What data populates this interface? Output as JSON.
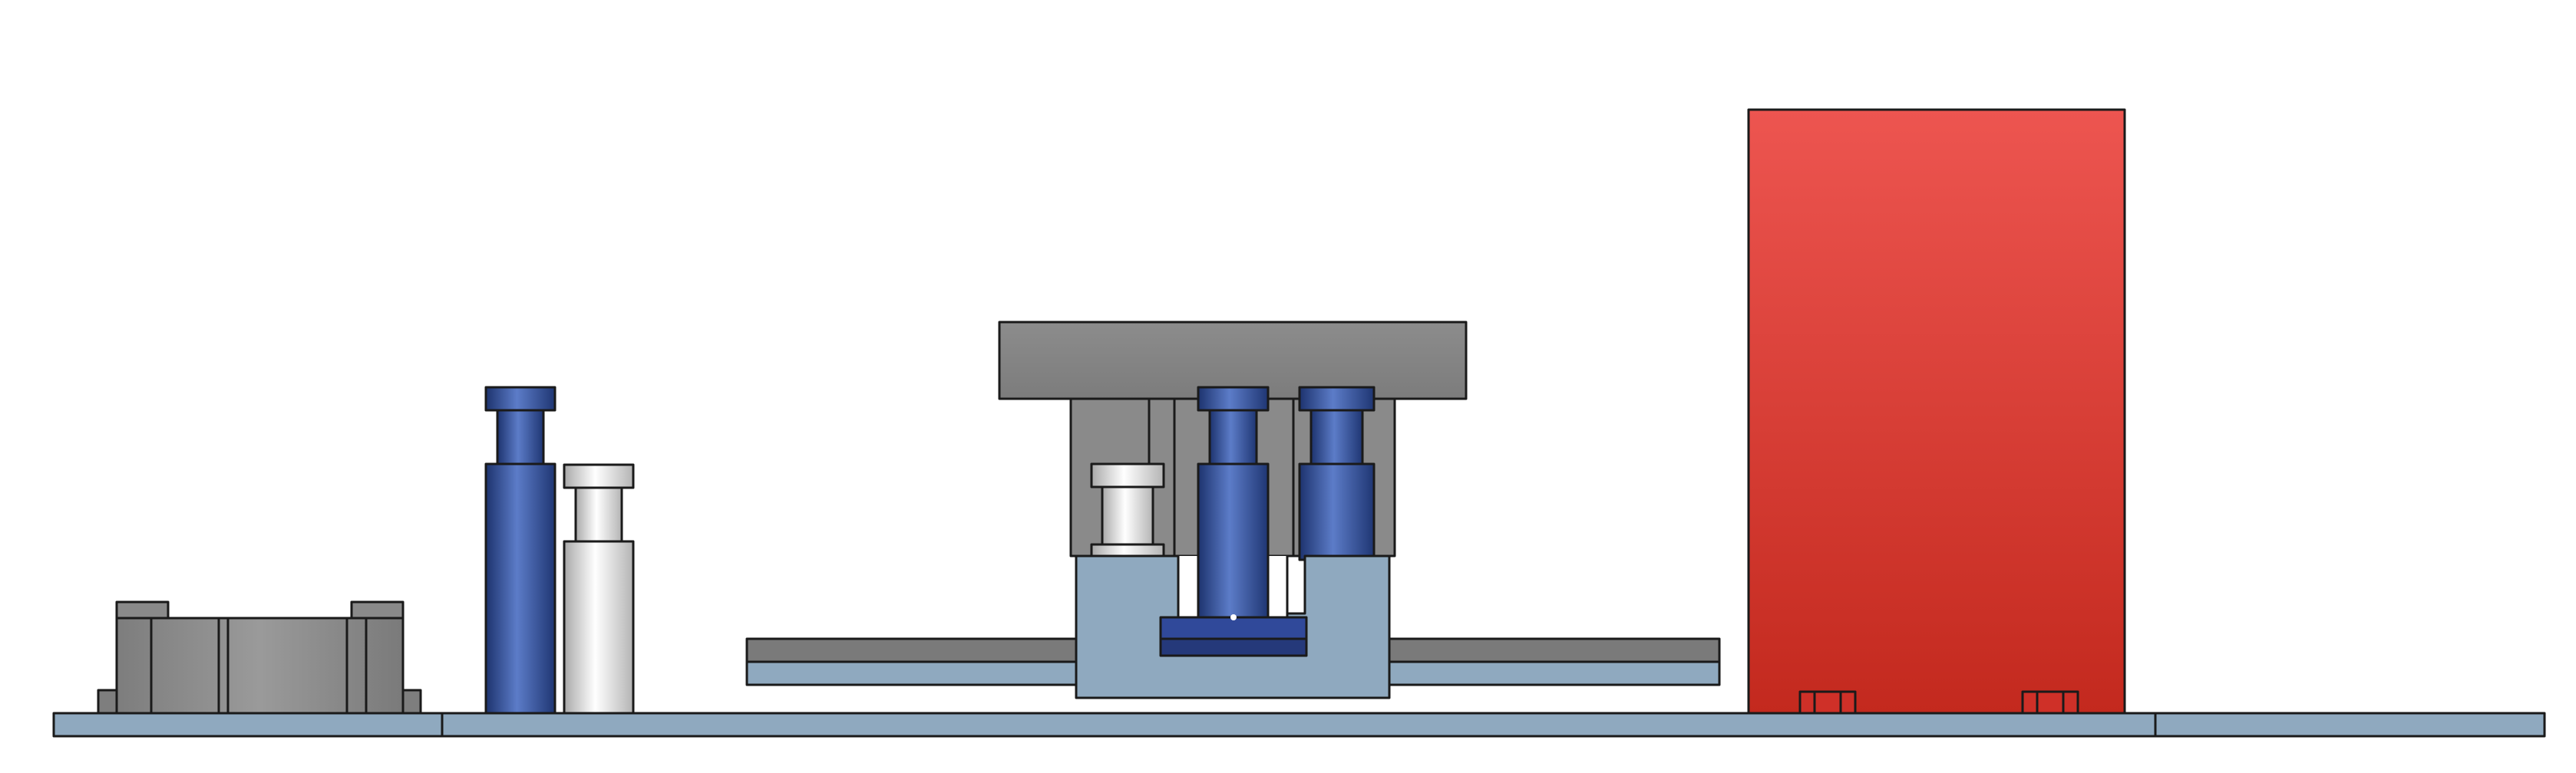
{
  "scene": {
    "background": "#ffffff",
    "colors": {
      "base_plate": "#8fa9bf",
      "gray_part": "#8a8a8a",
      "blue_part": "#2d4a8f",
      "white_part": "#d8d8d8",
      "red_box": "#d8362b",
      "outline": "#1a1a1a"
    },
    "components": [
      {
        "name": "base-plate"
      },
      {
        "name": "gray-bracket"
      },
      {
        "name": "blue-post-left"
      },
      {
        "name": "white-post-left"
      },
      {
        "name": "center-assembly"
      },
      {
        "name": "red-box"
      }
    ]
  }
}
